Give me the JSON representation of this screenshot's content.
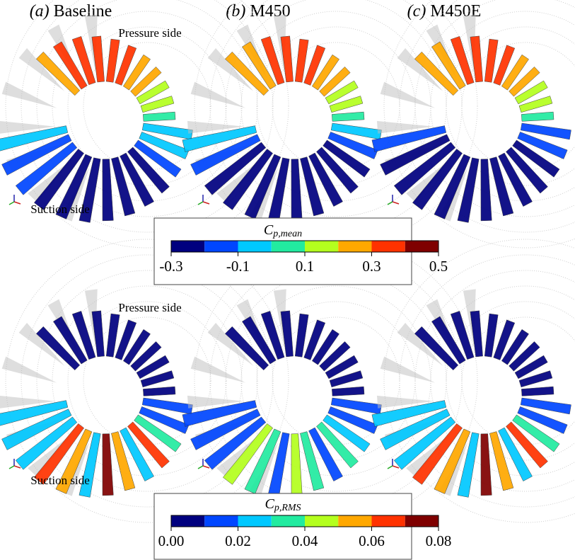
{
  "panels": [
    {
      "tag": "(a)",
      "name": "Baseline"
    },
    {
      "tag": "(b)",
      "name": "M450"
    },
    {
      "tag": "(c)",
      "name": "M450E"
    }
  ],
  "rows": [
    {
      "pressure_label": "Pressure side",
      "suction_label": "Suction side",
      "colorbar": {
        "symbol": "C",
        "subscript": "p,mean",
        "ticks": [
          "-0.3",
          "-0.1",
          "0.1",
          "0.3",
          "0.5"
        ],
        "colors": [
          "#00007f",
          "#0046ff",
          "#00c8ff",
          "#22eba0",
          "#b4ff1e",
          "#ffa800",
          "#ff3200",
          "#7f0000"
        ]
      }
    },
    {
      "pressure_label": "Pressure side",
      "suction_label": "Suction side",
      "colorbar": {
        "symbol": "C",
        "subscript": "p,RMS",
        "ticks": [
          "0.00",
          "0.02",
          "0.04",
          "0.06",
          "0.08"
        ],
        "colors": [
          "#00007f",
          "#0046ff",
          "#00c8ff",
          "#22eba0",
          "#b4ff1e",
          "#ffa800",
          "#ff3200",
          "#7f0000"
        ]
      }
    }
  ]
}
